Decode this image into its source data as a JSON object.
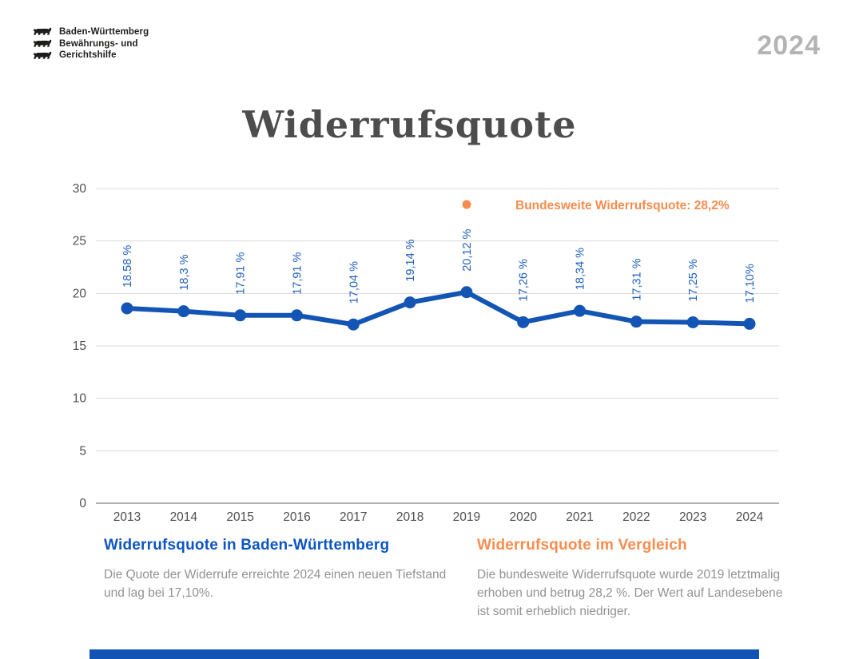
{
  "header": {
    "logo_lines": [
      "Baden-Württemberg",
      "Bewährungs- und",
      "Gerichtshilfe"
    ],
    "year_badge": "2024"
  },
  "title": "Widerrufsquote",
  "chart_data": {
    "type": "line",
    "title": "Widerrufsquote",
    "categories": [
      "2013",
      "2014",
      "2015",
      "2016",
      "2017",
      "2018",
      "2019",
      "2020",
      "2021",
      "2022",
      "2023",
      "2024"
    ],
    "series": [
      {
        "name": "Widerrufsquote in Baden-Württemberg",
        "values": [
          18.58,
          18.3,
          17.91,
          17.91,
          17.04,
          19.14,
          20.12,
          17.26,
          18.34,
          17.31,
          17.25,
          17.1
        ],
        "point_labels": [
          "18.58 %",
          "18,3 %",
          "17,91 %",
          "17,91 %",
          "17,04 %",
          "19,14 %",
          "20,12 %",
          "17,26 %",
          "18,34 %",
          "17,31 %",
          "17,25 %",
          "17,10%"
        ],
        "color": "#1355b4"
      }
    ],
    "legend": {
      "label": "Bundesweite Widerrufsquote: 28,2%",
      "marker": "dot",
      "color": "#f78c4e",
      "position": "top-right-inside"
    },
    "ylim": [
      0,
      30
    ],
    "yticks": [
      0,
      5,
      10,
      15,
      20,
      25,
      30
    ],
    "grid": true,
    "xlabel": "",
    "ylabel": ""
  },
  "sections": {
    "left": {
      "heading": "Widerrufsquote in Baden-Württemberg",
      "body": "Die Quote der Widerrufe erreichte 2024 einen neuen Tiefstand und lag bei 17,10%."
    },
    "right": {
      "heading": "Widerrufsquote im Vergleich",
      "body": "Die bundesweite Widerrufsquote wurde 2019 letztmalig erhoben und betrug 28,2 %. Der Wert auf Landesebene ist somit erheblich niedriger."
    }
  },
  "colors": {
    "line_blue": "#1355b4",
    "label_blue": "#2060bc",
    "heading_blue": "#0c55c2",
    "accent_orange": "#f78c4e",
    "title_gray": "#4d4d4d",
    "year_gray": "#b4b4b4",
    "body_gray": "#929292",
    "grid_gray": "#d9d9d9",
    "axis_gray": "#b0b0b0",
    "tick_text": "#4f4f4f",
    "footer_bar": "#1254b4"
  }
}
